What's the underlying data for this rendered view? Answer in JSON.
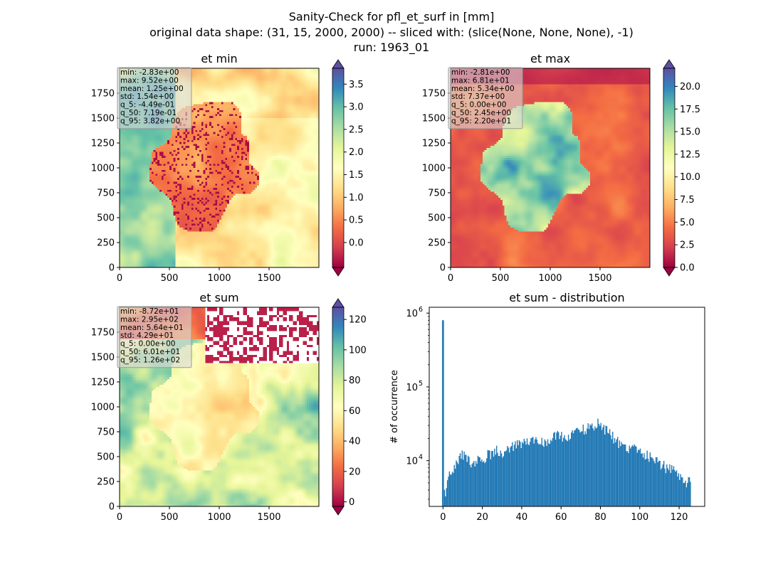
{
  "figure": {
    "suptitle": [
      "Sanity-Check for pfl_et_surf in [mm]",
      "original data shape: (31, 15, 2000, 2000) -- sliced with: (slice(None, None, None), -1)",
      "run: 1963_01"
    ],
    "colormap": "Spectral",
    "colormap_stops": [
      "#9e0142",
      "#d53e4f",
      "#f46d43",
      "#fdae61",
      "#fee08b",
      "#ffffbf",
      "#e6f598",
      "#abdda4",
      "#66c2a5",
      "#3288bd",
      "#5e4fa2"
    ],
    "mask_color": "#ffffff"
  },
  "chart_data": [
    {
      "type": "heatmap",
      "title": "et min",
      "xlim": [
        0,
        2000
      ],
      "ylim": [
        0,
        2000
      ],
      "x_ticks": [
        "0",
        "500",
        "1000",
        "1500"
      ],
      "y_ticks": [
        "0",
        "250",
        "500",
        "750",
        "1000",
        "1250",
        "1500",
        "1750"
      ],
      "colorbar": {
        "range": [
          -0.55,
          3.85
        ],
        "ticks": [
          "0.0",
          "0.5",
          "1.0",
          "1.5",
          "2.0",
          "2.5",
          "3.0",
          "3.5"
        ],
        "extend": "both"
      },
      "stats": [
        "min: -2.83e+00",
        "max: 9.52e+00",
        "mean: 1.25e+00",
        "std: 1.54e+00",
        "q_5: -4.49e-01",
        "q_50: 7.19e-01",
        "q_95: 3.82e+00"
      ]
    },
    {
      "type": "heatmap",
      "title": "et max",
      "xlim": [
        0,
        2000
      ],
      "ylim": [
        0,
        2000
      ],
      "x_ticks": [
        "0",
        "500",
        "1000",
        "1500"
      ],
      "y_ticks": [
        "0",
        "250",
        "500",
        "750",
        "1000",
        "1250",
        "1500",
        "1750"
      ],
      "colorbar": {
        "range": [
          0.0,
          22.0
        ],
        "ticks": [
          "0.0",
          "2.5",
          "5.0",
          "7.5",
          "10.0",
          "12.5",
          "15.0",
          "17.5",
          "20.0"
        ],
        "extend": "both"
      },
      "stats": [
        "min: -2.81e+00",
        "max: 6.81e+01",
        "mean: 5.34e+00",
        "std: 7.37e+00",
        "q_5: 0.00e+00",
        "q_50: 2.45e+00",
        "q_95: 2.20e+01"
      ]
    },
    {
      "type": "heatmap",
      "title": "et sum",
      "xlim": [
        0,
        2000
      ],
      "ylim": [
        0,
        2000
      ],
      "x_ticks": [
        "0",
        "500",
        "1000",
        "1500"
      ],
      "y_ticks": [
        "0",
        "250",
        "500",
        "750",
        "1000",
        "1250",
        "1500",
        "1750"
      ],
      "colorbar": {
        "range": [
          -3,
          128
        ],
        "ticks": [
          "0",
          "20",
          "40",
          "60",
          "80",
          "100",
          "120"
        ],
        "extend": "both"
      },
      "stats": [
        "min: -8.72e+01",
        "max: 2.95e+02",
        "mean: 5.64e+01",
        "std: 4.29e+01",
        "q_5: 0.00e+00",
        "q_50: 6.01e+01",
        "q_95: 1.26e+02"
      ]
    },
    {
      "type": "bar",
      "title": "et sum - distribution",
      "ylabel": "# of occurrence",
      "yscale": "log",
      "ylim": [
        2400,
        1200000
      ],
      "xlim": [
        -7,
        133
      ],
      "x_ticks": [
        "0",
        "20",
        "40",
        "60",
        "80",
        "100",
        "120"
      ],
      "y_ticks": [
        {
          "base": "10",
          "exp": "4"
        },
        {
          "base": "10",
          "exp": "5"
        },
        {
          "base": "10",
          "exp": "6"
        }
      ],
      "bar_color": "#1f77b4",
      "bin_range": [
        -0.5,
        126
      ],
      "bins": [
        {
          "x": 0,
          "count": 800000
        },
        {
          "x": 1,
          "count": 3500
        },
        {
          "x": 2,
          "count": 5500
        },
        {
          "x": 4,
          "count": 7500
        },
        {
          "x": 6,
          "count": 8800
        },
        {
          "x": 8,
          "count": 11500
        },
        {
          "x": 10,
          "count": 12000
        },
        {
          "x": 12,
          "count": 10500
        },
        {
          "x": 15,
          "count": 9500
        },
        {
          "x": 18,
          "count": 10500
        },
        {
          "x": 20,
          "count": 9500
        },
        {
          "x": 22,
          "count": 12000
        },
        {
          "x": 25,
          "count": 13000
        },
        {
          "x": 28,
          "count": 14000
        },
        {
          "x": 30,
          "count": 13000
        },
        {
          "x": 32,
          "count": 15000
        },
        {
          "x": 35,
          "count": 15500
        },
        {
          "x": 38,
          "count": 16500
        },
        {
          "x": 40,
          "count": 17000
        },
        {
          "x": 42,
          "count": 17500
        },
        {
          "x": 45,
          "count": 18500
        },
        {
          "x": 48,
          "count": 19500
        },
        {
          "x": 50,
          "count": 18000
        },
        {
          "x": 52,
          "count": 19000
        },
        {
          "x": 55,
          "count": 20500
        },
        {
          "x": 58,
          "count": 21500
        },
        {
          "x": 60,
          "count": 21000
        },
        {
          "x": 62,
          "count": 21500
        },
        {
          "x": 65,
          "count": 22500
        },
        {
          "x": 68,
          "count": 24000
        },
        {
          "x": 70,
          "count": 26000
        },
        {
          "x": 72,
          "count": 27500
        },
        {
          "x": 74,
          "count": 28500
        },
        {
          "x": 76,
          "count": 30000
        },
        {
          "x": 78,
          "count": 32000
        },
        {
          "x": 79,
          "count": 35000
        },
        {
          "x": 80,
          "count": 31000
        },
        {
          "x": 82,
          "count": 27500
        },
        {
          "x": 84,
          "count": 25000
        },
        {
          "x": 86,
          "count": 21000
        },
        {
          "x": 88,
          "count": 18500
        },
        {
          "x": 90,
          "count": 17000
        },
        {
          "x": 92,
          "count": 16000
        },
        {
          "x": 94,
          "count": 15500
        },
        {
          "x": 96,
          "count": 15000
        },
        {
          "x": 98,
          "count": 14000
        },
        {
          "x": 100,
          "count": 13500
        },
        {
          "x": 102,
          "count": 12500
        },
        {
          "x": 104,
          "count": 11500
        },
        {
          "x": 106,
          "count": 10500
        },
        {
          "x": 108,
          "count": 10000
        },
        {
          "x": 110,
          "count": 9500
        },
        {
          "x": 112,
          "count": 8500
        },
        {
          "x": 114,
          "count": 8000
        },
        {
          "x": 116,
          "count": 7500
        },
        {
          "x": 118,
          "count": 7000
        },
        {
          "x": 120,
          "count": 6000
        },
        {
          "x": 122,
          "count": 5500
        },
        {
          "x": 124,
          "count": 5000
        },
        {
          "x": 125,
          "count": 6000
        },
        {
          "x": 126,
          "count": 4000
        }
      ]
    }
  ]
}
